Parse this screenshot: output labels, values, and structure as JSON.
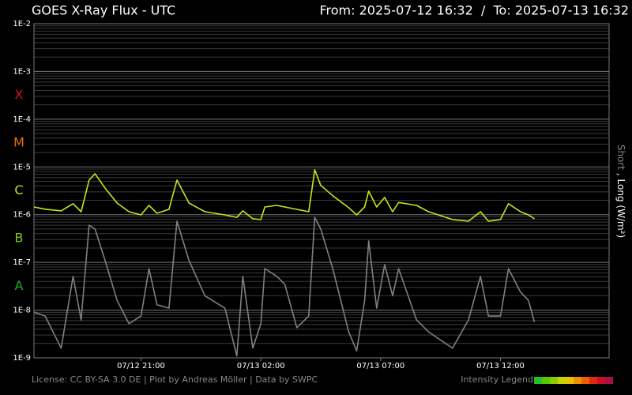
{
  "chart_data": {
    "type": "line",
    "title": "GOES X-Ray Flux - UTC",
    "period": "From: 2025-07-12 16:32  /  To: 2025-07-13 16:32",
    "log_y": true,
    "grid": true,
    "y_label_separator": ",",
    "y_label_unit": "(W/m²)",
    "license": "License: CC BY-SA 3.0 DE | Plot by Andreas Möller | Data by SWPC",
    "intensity_legend": "Intensity Legend",
    "intensity_colors": [
      "#22c02a",
      "#55c800",
      "#88cc00",
      "#c8d000",
      "#e8c000",
      "#f09000",
      "#f06000",
      "#e02a10",
      "#c8102a",
      "#a8104a"
    ],
    "classes": [
      {
        "label": "X",
        "color": "#d01818"
      },
      {
        "label": "M",
        "color": "#f06a10"
      },
      {
        "label": "C",
        "color": "#d8dc1c"
      },
      {
        "label": "B",
        "color": "#7cc818"
      },
      {
        "label": "A",
        "color": "#20b020"
      }
    ],
    "xlim": [
      "07/12 16:32",
      "07/13 16:32"
    ],
    "xticks": [
      "07/12 21:00",
      "07/13 02:00",
      "07/13 07:00",
      "07/13 12:00"
    ],
    "ylim": [
      1e-09,
      0.01
    ],
    "yticks": [
      {
        "value": 0.01,
        "label": "1E-2"
      },
      {
        "value": 0.001,
        "label": "1E-3"
      },
      {
        "value": 0.0001,
        "label": "1E-4"
      },
      {
        "value": 1e-05,
        "label": "1E-5"
      },
      {
        "value": 1e-06,
        "label": "1E-6"
      },
      {
        "value": 1e-07,
        "label": "1E-7"
      },
      {
        "value": 1e-08,
        "label": "1E-8"
      },
      {
        "value": 1e-09,
        "label": "1E-9"
      }
    ],
    "x": [
      "07/12 16:32",
      "07/12 17:00",
      "07/12 17:40",
      "07/12 18:10",
      "07/12 18:30",
      "07/12 18:50",
      "07/12 19:05",
      "07/12 19:30",
      "07/12 20:00",
      "07/12 20:30",
      "07/12 21:00",
      "07/12 21:20",
      "07/12 21:40",
      "07/12 22:10",
      "07/12 22:30",
      "07/12 23:00",
      "07/12 23:40",
      "07/13 00:30",
      "07/13 01:00",
      "07/13 01:15",
      "07/13 01:40",
      "07/13 02:00",
      "07/13 02:10",
      "07/13 02:40",
      "07/13 03:00",
      "07/13 03:30",
      "07/13 04:00",
      "07/13 04:15",
      "07/13 04:30",
      "07/13 05:00",
      "07/13 05:40",
      "07/13 06:00",
      "07/13 06:20",
      "07/13 06:30",
      "07/13 06:50",
      "07/13 07:10",
      "07/13 07:30",
      "07/13 07:45",
      "07/13 08:30",
      "07/13 09:00",
      "07/13 10:00",
      "07/13 10:40",
      "07/13 11:10",
      "07/13 11:30",
      "07/13 12:00",
      "07/13 12:20",
      "07/13 12:50",
      "07/13 13:10",
      "07/13 13:25"
    ],
    "series": [
      {
        "name": "Short",
        "color": "#808080",
        "values": [
          9.1e-09,
          7.5e-09,
          1.6e-09,
          5.1e-08,
          6.2e-09,
          6e-07,
          5e-07,
          1.1e-07,
          1.6e-08,
          5.2e-09,
          7.5e-09,
          7.4e-08,
          1.3e-08,
          1.1e-08,
          7.3e-07,
          1.1e-07,
          2e-08,
          1.1e-08,
          1.1e-09,
          5.1e-08,
          1.6e-09,
          5.2e-09,
          7.4e-08,
          5.1e-08,
          3.5e-08,
          4.3e-09,
          7.5e-09,
          8.8e-07,
          5e-07,
          7.4e-08,
          3.5e-09,
          1.4e-09,
          1.6e-08,
          2.8e-07,
          1.1e-08,
          9e-08,
          2e-08,
          7.4e-08,
          6.2e-09,
          3.5e-09,
          1.6e-09,
          6.2e-09,
          5.1e-08,
          7.5e-09,
          7.5e-09,
          7.4e-08,
          2.4e-08,
          1.6e-08,
          5.6e-09
        ]
      },
      {
        "name": "Long",
        "color": "#c8e617",
        "values": [
          1.45e-06,
          1.3e-06,
          1.2e-06,
          1.7e-06,
          1.15e-06,
          5.3e-06,
          7.2e-06,
          3.6e-06,
          1.75e-06,
          1.15e-06,
          9.9e-07,
          1.56e-06,
          1.07e-06,
          1.29e-06,
          5.3e-06,
          1.75e-06,
          1.15e-06,
          9.9e-07,
          8.8e-07,
          1.2e-06,
          8.2e-07,
          7.9e-07,
          1.45e-06,
          1.56e-06,
          1.45e-06,
          1.29e-06,
          1.15e-06,
          8.7e-06,
          4.1e-06,
          2.5e-06,
          1.4e-06,
          9.9e-07,
          1.45e-06,
          3.1e-06,
          1.45e-06,
          2.3e-06,
          1.15e-06,
          1.8e-06,
          1.56e-06,
          1.15e-06,
          7.9e-07,
          7.3e-07,
          1.15e-06,
          7.3e-07,
          7.9e-07,
          1.7e-06,
          1.15e-06,
          9.9e-07,
          8.2e-07
        ]
      }
    ]
  }
}
